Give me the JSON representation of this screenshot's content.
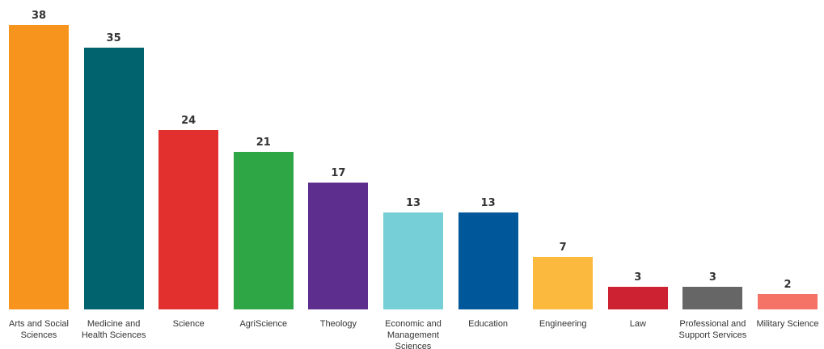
{
  "chart_data": {
    "type": "bar",
    "title": "",
    "xlabel": "",
    "ylabel": "",
    "categories": [
      "Arts and Social Sciences",
      "Medicine and Health Sciences",
      "Science",
      "AgriScience",
      "Theology",
      "Economic and Management Sciences",
      "Education",
      "Engineering",
      "Law",
      "Professional and Support Services",
      "Military Science"
    ],
    "values": [
      38,
      35,
      24,
      21,
      17,
      13,
      13,
      7,
      3,
      3,
      2
    ],
    "colors": [
      "#f7941d",
      "#00636e",
      "#e1302d",
      "#2ea646",
      "#5e2e8f",
      "#76cfd6",
      "#00579a",
      "#fbb93e",
      "#cc2232",
      "#666666",
      "#f47266"
    ],
    "ylim": [
      0,
      38
    ],
    "grid": false,
    "legend": "none",
    "data_labels": true
  }
}
